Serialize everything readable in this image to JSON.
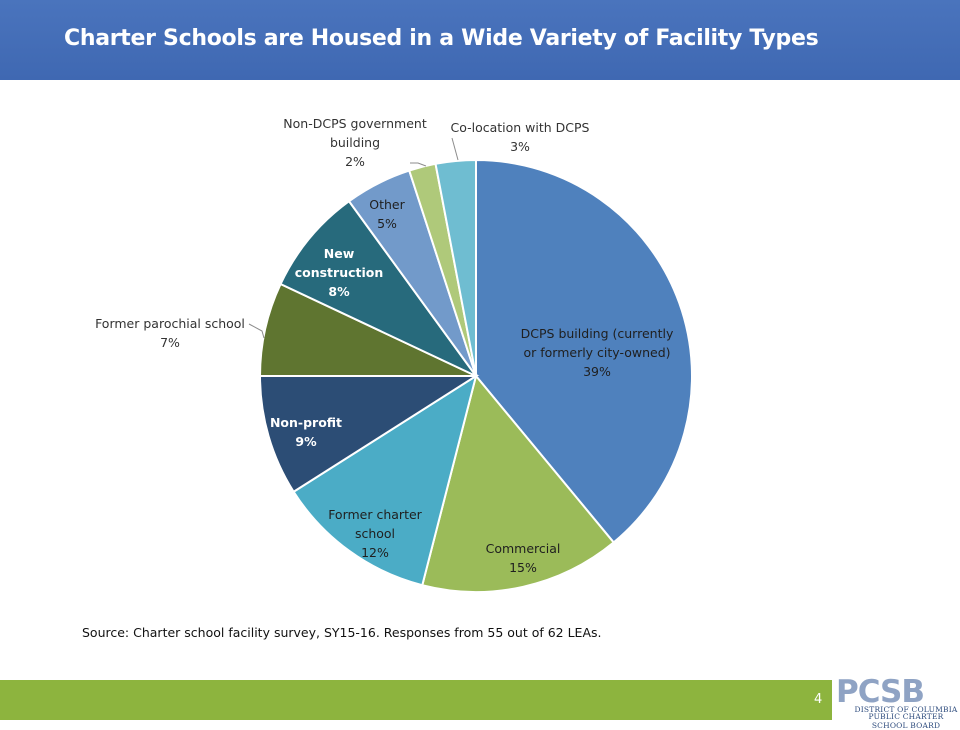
{
  "header": {
    "title": "Charter Schools are Housed in a Wide Variety of Facility Types"
  },
  "source_note": "Source: Charter school facility survey, SY15-16. Responses from 55 out of 62 LEAs.",
  "footer": {
    "page_number": "4",
    "logo": {
      "mark": "PCSB",
      "line1": "DISTRICT OF COLUMBIA",
      "line2": "PUBLIC CHARTER SCHOOL BOARD"
    }
  },
  "chart_data": {
    "type": "pie",
    "title": "",
    "start": "12 o'clock, clockwise",
    "slices": [
      {
        "label": "DCPS building (currently or formerly city-owned)",
        "value_label": "39%",
        "value": 39,
        "color": "#4f81bd"
      },
      {
        "label": "Commercial",
        "value_label": "15%",
        "value": 15,
        "color": "#9bbb59"
      },
      {
        "label": "Former charter school",
        "value_label": "12%",
        "value": 12,
        "color": "#4bacc6"
      },
      {
        "label": "Non-profit",
        "value_label": "9%",
        "value": 9,
        "color": "#2c4d75"
      },
      {
        "label": "Former parochial school",
        "value_label": "7%",
        "value": 7,
        "color": "#5f7530"
      },
      {
        "label": "New construction",
        "value_label": "8%",
        "value": 8,
        "color": "#276a7c"
      },
      {
        "label": "Other",
        "value_label": "5%",
        "value": 5,
        "color": "#729aca"
      },
      {
        "label": "Non-DCPS government building",
        "value_label": "2%",
        "value": 2,
        "color": "#afc97a"
      },
      {
        "label": "Co-location with DCPS",
        "value_label": "3%",
        "value": 3,
        "color": "#6fbdd1"
      }
    ]
  }
}
